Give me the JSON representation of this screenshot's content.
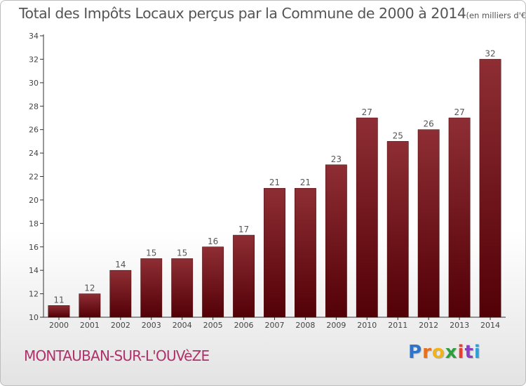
{
  "chart_data": {
    "type": "bar",
    "title": "Total des Impôts Locaux perçus par la Commune de 2000 à 2014",
    "subtitle": "(en milliers d'€)",
    "categories": [
      "2000",
      "2001",
      "2002",
      "2003",
      "2004",
      "2005",
      "2006",
      "2007",
      "2008",
      "2009",
      "2010",
      "2011",
      "2012",
      "2013",
      "2014"
    ],
    "values": [
      11,
      12,
      14,
      15,
      15,
      16,
      17,
      21,
      21,
      23,
      27,
      25,
      26,
      27,
      32
    ],
    "ylim": [
      10,
      34
    ],
    "yticks": [
      10,
      12,
      14,
      16,
      18,
      20,
      22,
      24,
      26,
      28,
      30,
      32,
      34
    ],
    "xlabel": "",
    "ylabel": "",
    "grid": false,
    "bar_color": "#6e0e16"
  },
  "commune_name": "MONTAUBAN-SUR-L'OUVèZE",
  "logo": {
    "letters": [
      "P",
      "r",
      "o",
      "x",
      "i",
      "t",
      "i"
    ],
    "colors": [
      "#2e75c9",
      "#e8701a",
      "#f2b21b",
      "#2e9e3f",
      "#e63e2f",
      "#8a3fc0",
      "#2e9fd6"
    ]
  }
}
